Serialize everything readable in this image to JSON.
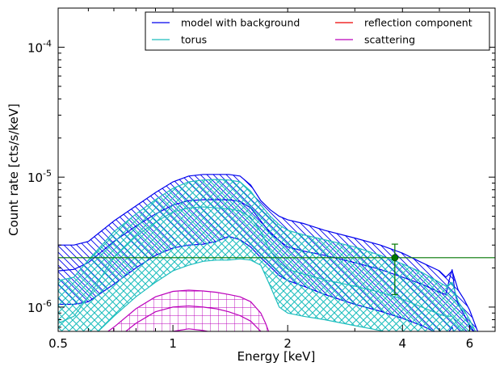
{
  "chart_data": {
    "type": "line",
    "xlabel": "Energy [keV]",
    "ylabel": "Count rate [cts/s/keV]",
    "xscale": "log",
    "yscale": "log",
    "xlim": [
      0.5,
      7.0
    ],
    "ylim": [
      6.5e-07,
      0.0002
    ],
    "x_ticks": [
      {
        "value": 0.5,
        "label": "0.5"
      },
      {
        "value": 1,
        "label": "1"
      },
      {
        "value": 2,
        "label": "2"
      },
      {
        "value": 4,
        "label": "4"
      },
      {
        "value": 6,
        "label": "6"
      }
    ],
    "y_ticks": [
      {
        "value": 1e-06,
        "base": "10",
        "exp": "-6"
      },
      {
        "value": 1e-05,
        "base": "10",
        "exp": "-5"
      },
      {
        "value": 0.0001,
        "base": "10",
        "exp": "-4"
      }
    ],
    "legend_position": "top-right",
    "legend": [
      {
        "label": "model with background",
        "color": "#0000ee"
      },
      {
        "label": "reflection component",
        "color": "#ee0000"
      },
      {
        "label": "torus",
        "color": "#1ebebe"
      },
      {
        "label": "scattering",
        "color": "#bb00bb"
      }
    ],
    "background_level": 2.4e-06,
    "series": [
      {
        "name": "model with background",
        "color": "#0000ee",
        "x": [
          0.5,
          0.55,
          0.6,
          0.7,
          0.8,
          0.9,
          1.0,
          1.1,
          1.2,
          1.3,
          1.4,
          1.5,
          1.6,
          1.7,
          1.8,
          1.9,
          2.0,
          2.2,
          2.5,
          3.0,
          3.5,
          4.0,
          4.5,
          5.0,
          5.2,
          5.3,
          5.4,
          5.5,
          5.6,
          5.8,
          6.0,
          6.3
        ],
        "upper": [
          3e-06,
          3e-06,
          3.2e-06,
          4.6e-06,
          6e-06,
          7.6e-06,
          9.2e-06,
          1.02e-05,
          1.05e-05,
          1.05e-05,
          1.05e-05,
          1.02e-05,
          8.7e-06,
          6.6e-06,
          5.6e-06,
          5e-06,
          4.7e-06,
          4.4e-06,
          3.9e-06,
          3.4e-06,
          3e-06,
          2.6e-06,
          2.2e-06,
          1.9e-06,
          1.7e-06,
          1.8e-06,
          1.9e-06,
          1.6e-06,
          1.35e-06,
          1.15e-06,
          9.5e-07,
          6.5e-07
        ],
        "median": [
          1.9e-06,
          1.95e-06,
          2.2e-06,
          3.2e-06,
          4.2e-06,
          5.2e-06,
          6.1e-06,
          6.6e-06,
          6.7e-06,
          6.7e-06,
          6.7e-06,
          6.5e-06,
          5.8e-06,
          4.6e-06,
          3.7e-06,
          3.25e-06,
          2.9e-06,
          2.7e-06,
          2.5e-06,
          2.2e-06,
          1.95e-06,
          1.7e-06,
          1.5e-06,
          1.3e-06,
          1.25e-06,
          1.6e-06,
          1.95e-06,
          1.25e-06,
          1.05e-06,
          8.8e-07,
          7.2e-07,
          6e-07
        ],
        "lower": [
          1.05e-06,
          1.05e-06,
          1.1e-06,
          1.5e-06,
          2e-06,
          2.5e-06,
          2.85e-06,
          3e-06,
          3.05e-06,
          3.2e-06,
          3.5e-06,
          3.3e-06,
          2.9e-06,
          2.4e-06,
          2.05e-06,
          1.75e-06,
          1.6e-06,
          1.45e-06,
          1.25e-06,
          1.05e-06,
          9.3e-07,
          8.2e-07,
          7.2e-07,
          6.2e-07,
          6e-07,
          6.5e-07,
          7e-07,
          6e-07,
          5.5e-07,
          5e-07,
          4.5e-07,
          4e-07
        ]
      },
      {
        "name": "torus",
        "color": "#1ebebe",
        "x": [
          0.5,
          0.55,
          0.6,
          0.7,
          0.8,
          0.9,
          1.0,
          1.1,
          1.2,
          1.3,
          1.4,
          1.5,
          1.6,
          1.7,
          1.8,
          1.9,
          2.0,
          2.2,
          2.5,
          3.0,
          3.5,
          4.0,
          4.5,
          5.0,
          5.2,
          5.3,
          5.4,
          5.5,
          5.6,
          5.8,
          6.0,
          6.3
        ],
        "upper": [
          1.6e-06,
          1.7e-06,
          2.3e-06,
          3.8e-06,
          5.2e-06,
          6.7e-06,
          8.2e-06,
          9.2e-06,
          9.5e-06,
          9.6e-06,
          9.5e-06,
          9.2e-06,
          7.8e-06,
          6.1e-06,
          5e-06,
          4.3e-06,
          3.9e-06,
          3.6e-06,
          3.3e-06,
          2.9e-06,
          2.5e-06,
          2.15e-06,
          1.85e-06,
          1.55e-06,
          1.45e-06,
          1.5e-06,
          1.55e-06,
          1.3e-06,
          1.1e-06,
          9.5e-07,
          8e-07,
          6e-07
        ],
        "median": [
          7.5e-07,
          8.5e-07,
          1.2e-06,
          2.4e-06,
          3.5e-06,
          4.5e-06,
          5.4e-06,
          5.8e-06,
          5.9e-06,
          5.8e-06,
          5.7e-06,
          5.5e-06,
          4.9e-06,
          3.8e-06,
          2.7e-06,
          2.2e-06,
          1.95e-06,
          1.8e-06,
          1.62e-06,
          1.45e-06,
          1.3e-06,
          1.15e-06,
          1e-06,
          8.8e-07,
          8.5e-07,
          8.5e-07,
          8.5e-07,
          7.8e-07,
          7.2e-07,
          6.6e-07,
          6e-07,
          5e-07
        ],
        "lower": [
          4e-07,
          4.5e-07,
          5.5e-07,
          8.5e-07,
          1.2e-06,
          1.55e-06,
          1.9e-06,
          2.1e-06,
          2.25e-06,
          2.3e-06,
          2.3e-06,
          2.35e-06,
          2.3e-06,
          2.1e-06,
          1.45e-06,
          1e-06,
          9e-07,
          8.5e-07,
          8e-07,
          7.2e-07,
          6.6e-07,
          6e-07,
          5.5e-07,
          5e-07,
          4.8e-07,
          4.8e-07,
          4.8e-07,
          4.5e-07,
          4.3e-07,
          4e-07,
          3.8e-07,
          3.5e-07
        ]
      },
      {
        "name": "scattering",
        "color": "#bb00bb",
        "x": [
          0.65,
          0.7,
          0.8,
          0.9,
          1.0,
          1.1,
          1.2,
          1.3,
          1.4,
          1.5,
          1.6,
          1.7,
          1.75,
          1.8
        ],
        "upper": [
          6e-07,
          7e-07,
          9.7e-07,
          1.2e-06,
          1.32e-06,
          1.35e-06,
          1.33e-06,
          1.3e-06,
          1.25e-06,
          1.2e-06,
          1.1e-06,
          9e-07,
          7.5e-07,
          6e-07
        ],
        "median": [
          4.5e-07,
          5.5e-07,
          7.5e-07,
          9.2e-07,
          1e-06,
          1.02e-06,
          1e-06,
          9.7e-07,
          9.2e-07,
          8.6e-07,
          7.8e-07,
          6.5e-07,
          5.5e-07,
          4.5e-07
        ],
        "lower": [
          3e-07,
          3.5e-07,
          5e-07,
          6e-07,
          6.5e-07,
          6.8e-07,
          6.6e-07,
          6.3e-07,
          6e-07,
          5.5e-07,
          5e-07,
          4.2e-07,
          3.6e-07,
          3e-07
        ]
      }
    ],
    "data_point": {
      "x": 3.82,
      "y": 2.4e-06,
      "y_upper": 3.05e-06,
      "y_lower": 1.25e-06,
      "color": "#007700"
    }
  }
}
